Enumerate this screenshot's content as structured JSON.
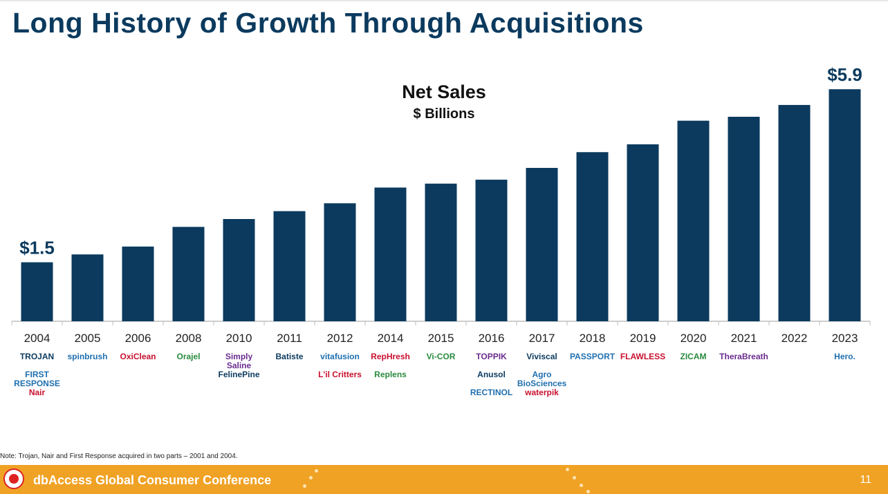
{
  "slide": {
    "title": "Long History of Growth Through Acquisitions",
    "note": "Note:  Trojan, Nair and First Response acquired in two parts – 2001 and 2004.",
    "footer_text": "dbAccess Global Consumer Conference",
    "page_number": "11"
  },
  "chart_data": {
    "type": "bar",
    "title": "Net Sales",
    "subtitle": "$ Billions",
    "categories": [
      "2004",
      "2005",
      "2006",
      "2008",
      "2010",
      "2011",
      "2012",
      "2014",
      "2015",
      "2016",
      "2017",
      "2018",
      "2019",
      "2020",
      "2021",
      "2022",
      "2023"
    ],
    "values": [
      1.5,
      1.7,
      1.9,
      2.4,
      2.6,
      2.8,
      3.0,
      3.4,
      3.5,
      3.6,
      3.9,
      4.3,
      4.5,
      5.1,
      5.2,
      5.5,
      5.9
    ],
    "data_labels": [
      {
        "index": 0,
        "text": "$1.5"
      },
      {
        "index": 16,
        "text": "$5.9"
      }
    ],
    "ylim": [
      0,
      6.5
    ],
    "grid": false,
    "bar_color": "#0b3a5e"
  },
  "acquisitions": [
    {
      "year": "2004",
      "brands": [
        "TROJAN",
        "FIRST RESPONSE",
        "Nair"
      ]
    },
    {
      "year": "2005",
      "brands": [
        "spinbrush"
      ]
    },
    {
      "year": "2006",
      "brands": [
        "OxiClean"
      ]
    },
    {
      "year": "2008",
      "brands": [
        "Orajel"
      ]
    },
    {
      "year": "2010",
      "brands": [
        "Simply Saline",
        "FelinePine"
      ]
    },
    {
      "year": "2011",
      "brands": [
        "Batiste"
      ]
    },
    {
      "year": "2012",
      "brands": [
        "vitafusion",
        "L'il Critters"
      ]
    },
    {
      "year": "2014",
      "brands": [
        "RepHresh",
        "Replens"
      ]
    },
    {
      "year": "2015",
      "brands": [
        "Vi-COR"
      ]
    },
    {
      "year": "2016",
      "brands": [
        "TOPPIK",
        "Anusol",
        "RECTINOL"
      ]
    },
    {
      "year": "2017",
      "brands": [
        "Viviscal",
        "Agro BioSciences",
        "waterpik"
      ]
    },
    {
      "year": "2018",
      "brands": [
        "PASSPORT"
      ]
    },
    {
      "year": "2019",
      "brands": [
        "FLAWLESS"
      ]
    },
    {
      "year": "2020",
      "brands": [
        "ZICAM"
      ]
    },
    {
      "year": "2021",
      "brands": [
        "TheraBreath"
      ]
    },
    {
      "year": "2022",
      "brands": []
    },
    {
      "year": "2023",
      "brands": [
        "Hero."
      ]
    }
  ]
}
